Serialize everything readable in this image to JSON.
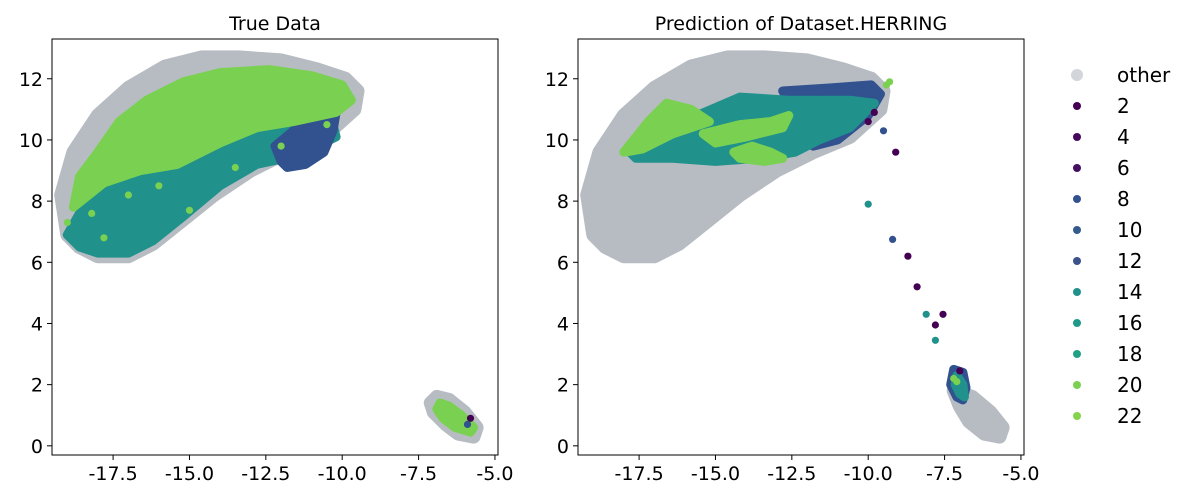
{
  "chart_data": [
    {
      "type": "scatter",
      "title": "True Data",
      "xlabel": "",
      "ylabel": "",
      "xlim": [
        -19.5,
        -4.9
      ],
      "ylim": [
        -0.3,
        13.3
      ],
      "xticks": [
        -17.5,
        -15.0,
        -12.5,
        -10.0,
        -7.5,
        -5.0
      ],
      "yticks": [
        0,
        2,
        4,
        6,
        8,
        10,
        12
      ],
      "xtick_labels": [
        "-17.5",
        "-15.0",
        "-12.5",
        "-10.0",
        "-7.5",
        "-5.0"
      ],
      "ytick_labels": [
        "0",
        "2",
        "4",
        "6",
        "8",
        "10",
        "12"
      ],
      "grid": false,
      "regions": [
        {
          "series": "other",
          "points": [
            [
              -19.0,
              6.9
            ],
            [
              -18.6,
              6.5
            ],
            [
              -18.0,
              6.2
            ],
            [
              -17.0,
              6.2
            ],
            [
              -16.2,
              6.6
            ],
            [
              -15.2,
              7.4
            ],
            [
              -14.2,
              8.2
            ],
            [
              -13.0,
              9.0
            ],
            [
              -11.8,
              9.6
            ],
            [
              -10.6,
              10.1
            ],
            [
              -9.6,
              11.0
            ],
            [
              -9.5,
              11.6
            ],
            [
              -9.9,
              12.0
            ],
            [
              -10.8,
              12.3
            ],
            [
              -12.0,
              12.6
            ],
            [
              -13.4,
              12.7
            ],
            [
              -14.6,
              12.7
            ],
            [
              -15.8,
              12.4
            ],
            [
              -17.0,
              11.7
            ],
            [
              -18.0,
              10.8
            ],
            [
              -18.8,
              9.6
            ],
            [
              -19.2,
              8.2
            ]
          ]
        },
        {
          "series": "other",
          "points": [
            [
              -6.9,
              1.6
            ],
            [
              -6.5,
              1.5
            ],
            [
              -6.0,
              1.1
            ],
            [
              -5.6,
              0.6
            ],
            [
              -5.7,
              0.3
            ],
            [
              -6.2,
              0.4
            ],
            [
              -6.6,
              0.7
            ],
            [
              -7.0,
              1.1
            ],
            [
              -7.1,
              1.4
            ]
          ]
        },
        {
          "series": "14",
          "points": [
            [
              -19.0,
              6.9
            ],
            [
              -18.6,
              6.5
            ],
            [
              -18.0,
              6.3
            ],
            [
              -17.0,
              6.3
            ],
            [
              -16.2,
              6.7
            ],
            [
              -15.2,
              7.5
            ],
            [
              -14.0,
              8.5
            ],
            [
              -12.8,
              9.2
            ],
            [
              -11.4,
              9.5
            ],
            [
              -10.2,
              10.1
            ],
            [
              -10.4,
              10.9
            ],
            [
              -12.5,
              10.6
            ],
            [
              -14.5,
              9.6
            ],
            [
              -16.5,
              8.8
            ],
            [
              -18.2,
              8.3
            ]
          ]
        },
        {
          "series": "8",
          "points": [
            [
              -11.8,
              9.1
            ],
            [
              -11.2,
              9.2
            ],
            [
              -10.6,
              9.6
            ],
            [
              -10.3,
              10.3
            ],
            [
              -10.2,
              10.9
            ],
            [
              -11.0,
              10.8
            ],
            [
              -11.6,
              10.3
            ],
            [
              -12.2,
              9.8
            ],
            [
              -12.0,
              9.3
            ]
          ]
        },
        {
          "series": "20",
          "points": [
            [
              -18.8,
              7.8
            ],
            [
              -18.6,
              8.8
            ],
            [
              -18.0,
              9.6
            ],
            [
              -17.3,
              10.6
            ],
            [
              -16.4,
              11.3
            ],
            [
              -15.2,
              11.9
            ],
            [
              -14.0,
              12.2
            ],
            [
              -12.4,
              12.3
            ],
            [
              -11.0,
              12.1
            ],
            [
              -10.0,
              11.8
            ],
            [
              -9.7,
              11.3
            ],
            [
              -10.2,
              10.9
            ],
            [
              -11.6,
              10.6
            ],
            [
              -12.8,
              10.4
            ],
            [
              -14.0,
              9.9
            ],
            [
              -15.4,
              9.2
            ],
            [
              -16.6,
              9.0
            ],
            [
              -17.8,
              8.6
            ]
          ]
        },
        {
          "series": "20",
          "points": [
            [
              -6.8,
              1.4
            ],
            [
              -6.5,
              1.3
            ],
            [
              -6.1,
              1.0
            ],
            [
              -5.7,
              0.6
            ],
            [
              -5.8,
              0.45
            ],
            [
              -6.3,
              0.6
            ],
            [
              -6.7,
              0.9
            ],
            [
              -6.9,
              1.2
            ]
          ]
        }
      ],
      "points": [
        {
          "series": "20",
          "x": -19.0,
          "y": 7.3
        },
        {
          "series": "20",
          "x": -18.2,
          "y": 7.6
        },
        {
          "series": "20",
          "x": -17.8,
          "y": 6.8
        },
        {
          "series": "20",
          "x": -17.0,
          "y": 8.2
        },
        {
          "series": "20",
          "x": -16.0,
          "y": 8.5
        },
        {
          "series": "20",
          "x": -15.0,
          "y": 7.7
        },
        {
          "series": "20",
          "x": -13.5,
          "y": 9.1
        },
        {
          "series": "20",
          "x": -12.0,
          "y": 9.8
        },
        {
          "series": "20",
          "x": -10.5,
          "y": 10.5
        },
        {
          "series": "2",
          "x": -5.8,
          "y": 0.9
        },
        {
          "series": "8",
          "x": -5.9,
          "y": 0.7
        }
      ]
    },
    {
      "type": "scatter",
      "title": "Prediction of Dataset.HERRING",
      "xlabel": "",
      "ylabel": "",
      "xlim": [
        -19.5,
        -4.9
      ],
      "ylim": [
        -0.3,
        13.3
      ],
      "xticks": [
        -17.5,
        -15.0,
        -12.5,
        -10.0,
        -7.5,
        -5.0
      ],
      "yticks": [
        0,
        2,
        4,
        6,
        8,
        10,
        12
      ],
      "xtick_labels": [
        "-17.5",
        "-15.0",
        "-12.5",
        "-10.0",
        "-7.5",
        "-5.0"
      ],
      "ytick_labels": [
        "0",
        "2",
        "4",
        "6",
        "8",
        "10",
        "12"
      ],
      "grid": false,
      "regions": [
        {
          "series": "other",
          "points": [
            [
              -19.0,
              6.9
            ],
            [
              -18.6,
              6.5
            ],
            [
              -18.0,
              6.2
            ],
            [
              -17.0,
              6.2
            ],
            [
              -16.2,
              6.6
            ],
            [
              -15.2,
              7.4
            ],
            [
              -14.2,
              8.2
            ],
            [
              -13.0,
              9.0
            ],
            [
              -11.8,
              9.6
            ],
            [
              -10.6,
              10.1
            ],
            [
              -9.6,
              11.0
            ],
            [
              -9.5,
              11.6
            ],
            [
              -9.9,
              12.0
            ],
            [
              -10.8,
              12.3
            ],
            [
              -12.0,
              12.6
            ],
            [
              -13.4,
              12.7
            ],
            [
              -14.6,
              12.7
            ],
            [
              -15.8,
              12.4
            ],
            [
              -17.0,
              11.7
            ],
            [
              -18.0,
              10.8
            ],
            [
              -18.8,
              9.6
            ],
            [
              -19.2,
              8.2
            ]
          ]
        },
        {
          "series": "other",
          "points": [
            [
              -7.2,
              1.8
            ],
            [
              -6.6,
              1.6
            ],
            [
              -6.0,
              1.1
            ],
            [
              -5.6,
              0.6
            ],
            [
              -5.7,
              0.3
            ],
            [
              -6.2,
              0.4
            ],
            [
              -6.7,
              0.8
            ],
            [
              -7.0,
              1.3
            ]
          ]
        },
        {
          "series": "8",
          "points": [
            [
              -12.8,
              11.6
            ],
            [
              -11.2,
              11.7
            ],
            [
              -9.9,
              11.8
            ],
            [
              -9.6,
              11.5
            ],
            [
              -10.0,
              10.8
            ],
            [
              -11.0,
              10.0
            ],
            [
              -11.8,
              9.8
            ],
            [
              -12.2,
              10.6
            ]
          ]
        },
        {
          "series": "14",
          "points": [
            [
              -17.8,
              9.6
            ],
            [
              -16.6,
              10.2
            ],
            [
              -15.6,
              10.8
            ],
            [
              -14.2,
              11.4
            ],
            [
              -12.6,
              11.3
            ],
            [
              -10.6,
              11.3
            ],
            [
              -9.8,
              11.2
            ],
            [
              -10.6,
              10.4
            ],
            [
              -11.6,
              10.0
            ],
            [
              -12.4,
              9.6
            ],
            [
              -13.6,
              9.4
            ],
            [
              -15.0,
              9.3
            ],
            [
              -16.4,
              9.4
            ],
            [
              -17.6,
              9.4
            ]
          ]
        },
        {
          "series": "20",
          "points": [
            [
              -18.0,
              9.6
            ],
            [
              -17.2,
              10.6
            ],
            [
              -16.6,
              11.2
            ],
            [
              -15.8,
              11.0
            ],
            [
              -15.2,
              10.6
            ],
            [
              -16.4,
              10.2
            ],
            [
              -17.4,
              9.7
            ]
          ]
        },
        {
          "series": "20",
          "points": [
            [
              -15.4,
              10.2
            ],
            [
              -14.2,
              10.5
            ],
            [
              -13.2,
              10.6
            ],
            [
              -12.6,
              10.8
            ],
            [
              -12.8,
              10.4
            ],
            [
              -14.0,
              10.1
            ],
            [
              -15.0,
              9.9
            ]
          ]
        },
        {
          "series": "20",
          "points": [
            [
              -13.8,
              9.8
            ],
            [
              -13.2,
              9.6
            ],
            [
              -12.8,
              9.4
            ],
            [
              -13.4,
              9.3
            ],
            [
              -14.2,
              9.4
            ],
            [
              -14.4,
              9.6
            ]
          ]
        },
        {
          "series": "8",
          "points": [
            [
              -7.2,
              2.5
            ],
            [
              -6.9,
              2.4
            ],
            [
              -6.8,
              1.9
            ],
            [
              -6.9,
              1.5
            ],
            [
              -7.1,
              1.6
            ],
            [
              -7.3,
              2.0
            ]
          ]
        },
        {
          "series": "14",
          "points": [
            [
              -7.1,
              2.3
            ],
            [
              -6.9,
              2.0
            ],
            [
              -6.85,
              1.6
            ],
            [
              -7.0,
              1.7
            ],
            [
              -7.15,
              2.0
            ]
          ]
        }
      ],
      "points": [
        {
          "series": "20",
          "x": -9.4,
          "y": 11.8
        },
        {
          "series": "20",
          "x": -9.3,
          "y": 11.9
        },
        {
          "series": "2",
          "x": -10.0,
          "y": 10.6
        },
        {
          "series": "2",
          "x": -9.8,
          "y": 10.9
        },
        {
          "series": "8",
          "x": -9.5,
          "y": 10.3
        },
        {
          "series": "2",
          "x": -9.1,
          "y": 9.6
        },
        {
          "series": "14",
          "x": -10.0,
          "y": 7.9
        },
        {
          "series": "8",
          "x": -9.2,
          "y": 6.75
        },
        {
          "series": "2",
          "x": -8.7,
          "y": 6.2
        },
        {
          "series": "2",
          "x": -8.4,
          "y": 5.2
        },
        {
          "series": "14",
          "x": -8.1,
          "y": 4.3
        },
        {
          "series": "2",
          "x": -7.8,
          "y": 3.95
        },
        {
          "series": "2",
          "x": -7.55,
          "y": 4.3
        },
        {
          "series": "14",
          "x": -7.8,
          "y": 3.45
        },
        {
          "series": "20",
          "x": -7.2,
          "y": 2.2
        },
        {
          "series": "2",
          "x": -7.0,
          "y": 2.45
        },
        {
          "series": "20",
          "x": -7.1,
          "y": 2.1
        }
      ]
    }
  ],
  "legend": {
    "placement": "right",
    "entries": [
      {
        "key": "other",
        "label": "other",
        "color": "#b4b9c0"
      },
      {
        "key": "2",
        "label": "2",
        "color": "#440154"
      },
      {
        "key": "4",
        "label": "4",
        "color": "#46085c"
      },
      {
        "key": "6",
        "label": "6",
        "color": "#461061"
      },
      {
        "key": "8",
        "label": "8",
        "color": "#31518f"
      },
      {
        "key": "10",
        "label": "10",
        "color": "#355b8d"
      },
      {
        "key": "12",
        "label": "12",
        "color": "#3b528b"
      },
      {
        "key": "14",
        "label": "14",
        "color": "#21918c"
      },
      {
        "key": "16",
        "label": "16",
        "color": "#1f9a8a"
      },
      {
        "key": "18",
        "label": "18",
        "color": "#22a085"
      },
      {
        "key": "20",
        "label": "20",
        "color": "#7ad151"
      },
      {
        "key": "22",
        "label": "22",
        "color": "#84d44b"
      }
    ]
  }
}
